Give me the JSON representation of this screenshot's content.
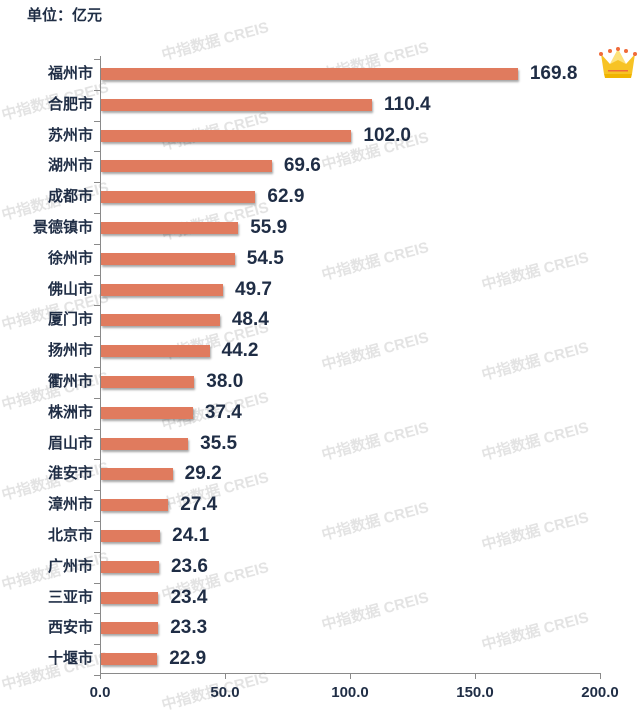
{
  "unit_label": "单位：亿元",
  "watermark": "中指数据 CREIS",
  "colors": {
    "bar": "#e07b5e",
    "text": "#1f2d45",
    "crown": "#f7c325"
  },
  "top_icon": "crown-icon",
  "x_ticks": [
    "0.0",
    "50.0",
    "100.0",
    "150.0",
    "200.0"
  ],
  "chart_data": {
    "type": "bar",
    "orientation": "horizontal",
    "title": "",
    "unit": "单位：亿元",
    "xlabel": "",
    "ylabel": "",
    "xlim": [
      0,
      200
    ],
    "x_tick_labels": [
      "0.0",
      "50.0",
      "100.0",
      "150.0",
      "200.0"
    ],
    "grid": false,
    "legend": null,
    "categories": [
      "福州市",
      "合肥市",
      "苏州市",
      "湖州市",
      "成都市",
      "景德镇市",
      "徐州市",
      "佛山市",
      "厦门市",
      "扬州市",
      "衢州市",
      "株洲市",
      "眉山市",
      "淮安市",
      "漳州市",
      "北京市",
      "广州市",
      "三亚市",
      "西安市",
      "十堰市"
    ],
    "values": [
      169.8,
      110.4,
      102.0,
      69.6,
      62.9,
      55.9,
      54.5,
      49.7,
      48.4,
      44.2,
      38.0,
      37.4,
      35.5,
      29.2,
      27.4,
      24.1,
      23.6,
      23.4,
      23.3,
      22.9
    ],
    "value_labels": [
      "169.8",
      "110.4",
      "102.0",
      "69.6",
      "62.9",
      "55.9",
      "54.5",
      "49.7",
      "48.4",
      "44.2",
      "38.0",
      "37.4",
      "35.5",
      "29.2",
      "27.4",
      "24.1",
      "23.6",
      "23.4",
      "23.3",
      "22.9"
    ],
    "annotations": [
      "crown icon next to top bar (福州市)"
    ]
  }
}
